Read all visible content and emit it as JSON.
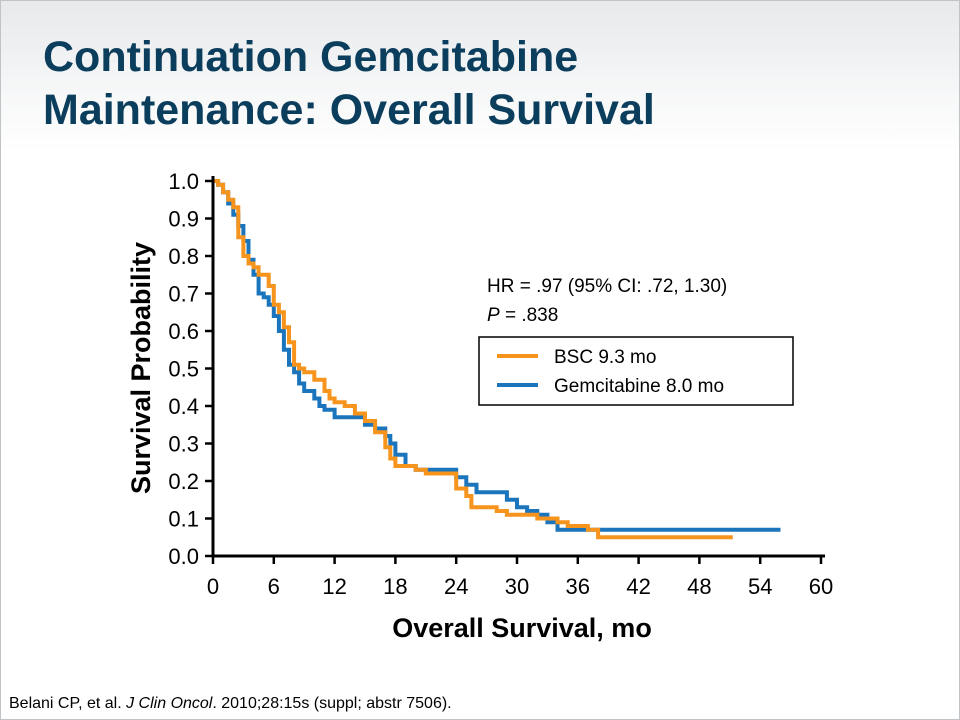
{
  "slide": {
    "title_line1": "Continuation Gemcitabine",
    "title_line2": "Maintenance: Overall Survival",
    "citation": {
      "prefix": "Belani CP, et al. ",
      "journal": "J Clin Oncol",
      "suffix": ". 2010;28:15s (suppl;  abstr 7506)."
    }
  },
  "chart_data": {
    "type": "line",
    "xlabel": "Overall Survival, mo",
    "ylabel": "Survival Probability",
    "xlim": [
      0,
      60
    ],
    "ylim": [
      0,
      1
    ],
    "xticks": [
      0,
      6,
      12,
      18,
      24,
      30,
      36,
      42,
      48,
      54,
      60
    ],
    "yticks": [
      0.0,
      0.1,
      0.2,
      0.3,
      0.4,
      0.5,
      0.6,
      0.7,
      0.8,
      0.9,
      1.0
    ],
    "ytick_labels": [
      "0.0",
      "0.1",
      "0.2",
      "0.3",
      "0.4",
      "0.5",
      "0.6",
      "0.7",
      "0.8",
      "0.9",
      "1.0"
    ],
    "grid": false,
    "legend_position": "right",
    "stats_line1": "HR = .97 (95% CI: .72, 1.30)",
    "stats_p_label": "P",
    "stats_p_value": " = .838",
    "series": [
      {
        "name": "BSC 9.3 mo",
        "color": "#f7941d",
        "x": [
          0,
          0.5,
          1.0,
          1.5,
          2.0,
          2.5,
          3.0,
          3.5,
          4.0,
          4.5,
          5.0,
          5.5,
          6.0,
          6.5,
          7.0,
          7.5,
          8.0,
          8.5,
          9.0,
          10.0,
          11.0,
          11.5,
          12.0,
          13.0,
          14.0,
          15.0,
          16.0,
          17.0,
          17.5,
          18.0,
          20.0,
          21.0,
          22.0,
          24.0,
          25.0,
          25.5,
          26.0,
          28.0,
          29.0,
          30.0,
          32.0,
          33.0,
          34.0,
          35.0,
          36.0,
          37.0,
          38.0,
          40.0,
          42.0,
          46.0,
          50.0,
          51.3
        ],
        "y": [
          1.0,
          0.99,
          0.97,
          0.95,
          0.93,
          0.85,
          0.8,
          0.78,
          0.77,
          0.75,
          0.75,
          0.72,
          0.67,
          0.65,
          0.61,
          0.57,
          0.51,
          0.5,
          0.49,
          0.47,
          0.44,
          0.42,
          0.41,
          0.4,
          0.38,
          0.36,
          0.33,
          0.29,
          0.26,
          0.24,
          0.23,
          0.22,
          0.22,
          0.18,
          0.16,
          0.13,
          0.13,
          0.12,
          0.11,
          0.11,
          0.1,
          0.1,
          0.09,
          0.08,
          0.08,
          0.07,
          0.05,
          0.05,
          0.05,
          0.05,
          0.05,
          0.05
        ]
      },
      {
        "name": "Gemcitabine 8.0 mo",
        "color": "#1b75bc",
        "x": [
          0,
          0.5,
          1.0,
          1.5,
          2.0,
          2.5,
          3.0,
          3.5,
          4.0,
          4.5,
          5.0,
          5.5,
          6.0,
          6.5,
          7.0,
          7.5,
          8.0,
          8.5,
          9.0,
          10.0,
          10.5,
          11.0,
          12.0,
          13.0,
          14.0,
          15.0,
          16.0,
          17.0,
          17.5,
          18.0,
          19.0,
          20.0,
          22.0,
          24.0,
          25.0,
          26.0,
          28.0,
          29.0,
          30.0,
          31.0,
          32.0,
          33.0,
          34.0,
          36.0,
          38.0,
          42.0,
          48.0,
          54.0,
          56.0
        ],
        "y": [
          1.0,
          0.99,
          0.97,
          0.94,
          0.91,
          0.88,
          0.84,
          0.79,
          0.75,
          0.7,
          0.69,
          0.67,
          0.64,
          0.6,
          0.55,
          0.51,
          0.49,
          0.46,
          0.44,
          0.42,
          0.4,
          0.39,
          0.37,
          0.37,
          0.37,
          0.35,
          0.34,
          0.32,
          0.3,
          0.27,
          0.24,
          0.23,
          0.23,
          0.21,
          0.19,
          0.17,
          0.17,
          0.15,
          0.13,
          0.12,
          0.11,
          0.09,
          0.07,
          0.07,
          0.07,
          0.07,
          0.07,
          0.07,
          0.07
        ]
      }
    ]
  }
}
